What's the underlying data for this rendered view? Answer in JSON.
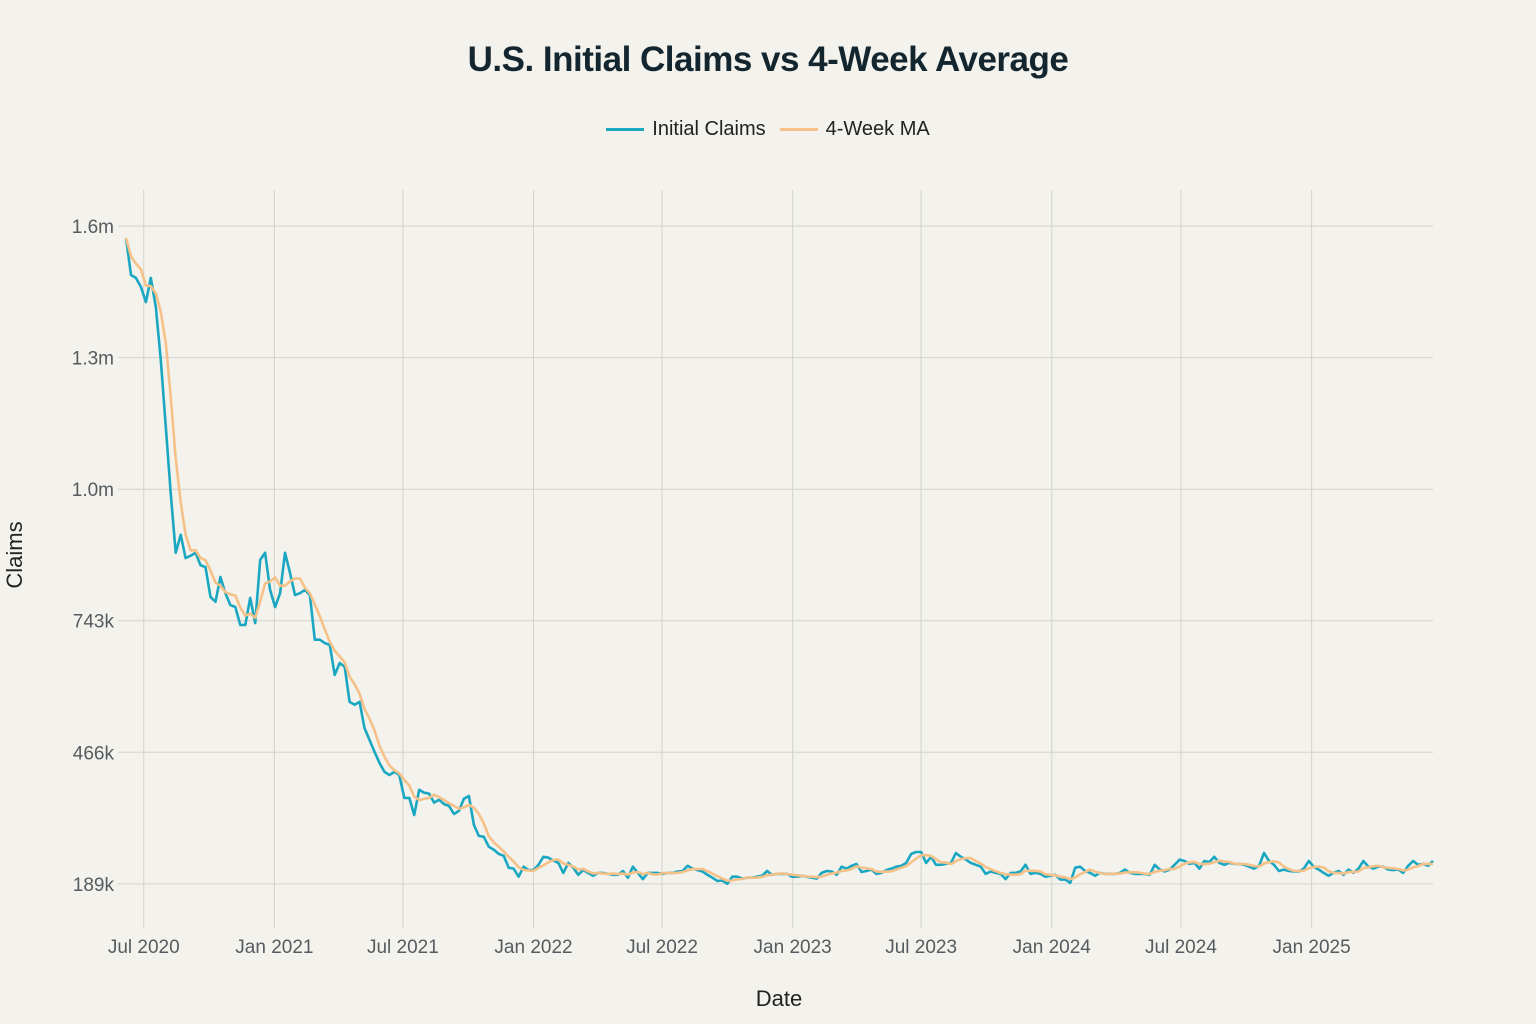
{
  "chart_data": {
    "type": "line",
    "title": "U.S. Initial Claims vs 4-Week Average",
    "xlabel": "Date",
    "ylabel": "Claims",
    "legend": {
      "placement": "top-center",
      "entries": [
        "Initial Claims",
        "4-Week MA"
      ]
    },
    "grid": true,
    "x": {
      "start_date": "2020-06-06",
      "frequency": "weekly"
    },
    "ylim": [
      96000,
      1650000
    ],
    "y_ticks": [
      {
        "value": 189000,
        "label": "189k"
      },
      {
        "value": 466000,
        "label": "466k"
      },
      {
        "value": 743000,
        "label": "743k"
      },
      {
        "value": 1020000,
        "label": "1.0m"
      },
      {
        "value": 1297000,
        "label": "1.3m"
      },
      {
        "value": 1574000,
        "label": "1.6m"
      }
    ],
    "x_ticks": [
      {
        "date": "2020-07-01",
        "label": "Jul 2020"
      },
      {
        "date": "2021-01-01",
        "label": "Jan 2021"
      },
      {
        "date": "2021-07-01",
        "label": "Jul 2021"
      },
      {
        "date": "2022-01-01",
        "label": "Jan 2022"
      },
      {
        "date": "2022-07-01",
        "label": "Jul 2022"
      },
      {
        "date": "2023-01-01",
        "label": "Jan 2023"
      },
      {
        "date": "2023-07-01",
        "label": "Jul 2023"
      },
      {
        "date": "2024-01-01",
        "label": "Jan 2024"
      },
      {
        "date": "2024-07-01",
        "label": "Jul 2024"
      },
      {
        "date": "2025-01-01",
        "label": "Jan 2025"
      }
    ],
    "value_unit": "thousands",
    "series": [
      {
        "name": "Initial Claims",
        "color": "#1aa7c2",
        "values": [
          1549,
          1471,
          1465,
          1446,
          1414,
          1465,
          1404,
          1292,
          1151,
          1012,
          886,
          924,
          875,
          880,
          886,
          860,
          856,
          793,
          783,
          835,
          801,
          776,
          772,
          734,
          734,
          791,
          738,
          871,
          886,
          808,
          772,
          801,
          886,
          844,
          797,
          801,
          808,
          797,
          703,
          703,
          696,
          692,
          629,
          654,
          646,
          572,
          566,
          572,
          517,
          492,
          467,
          444,
          425,
          418,
          425,
          418,
          370,
          370,
          334,
          387,
          381,
          379,
          360,
          366,
          357,
          353,
          336,
          343,
          368,
          374,
          313,
          290,
          288,
          267,
          261,
          252,
          248,
          223,
          221,
          204,
          225,
          218,
          218,
          229,
          246,
          244,
          238,
          233,
          212,
          233,
          223,
          208,
          218,
          212,
          206,
          212,
          212,
          210,
          208,
          208,
          216,
          202,
          225,
          212,
          199,
          212,
          212,
          212,
          210,
          212,
          212,
          215,
          216,
          227,
          221,
          218,
          215,
          208,
          202,
          195,
          196,
          189,
          204,
          204,
          200,
          202,
          202,
          204,
          206,
          216,
          208,
          210,
          210,
          210,
          204,
          204,
          206,
          204,
          202,
          200,
          212,
          216,
          215,
          208,
          225,
          221,
          227,
          231,
          214,
          216,
          219,
          210,
          212,
          218,
          221,
          225,
          227,
          233,
          252,
          256,
          256,
          233,
          246,
          229,
          229,
          231,
          233,
          254,
          246,
          240,
          233,
          229,
          225,
          210,
          215,
          212,
          210,
          199,
          212,
          212,
          215,
          229,
          210,
          212,
          210,
          204,
          206,
          208,
          198,
          198,
          191,
          223,
          225,
          216,
          212,
          206,
          212,
          210,
          210,
          210,
          212,
          219,
          212,
          210,
          210,
          210,
          208,
          229,
          219,
          215,
          219,
          229,
          240,
          237,
          231,
          233,
          221,
          237,
          235,
          246,
          233,
          229,
          233,
          231,
          231,
          229,
          225,
          221,
          227,
          254,
          237,
          229,
          216,
          219,
          216,
          215,
          215,
          221,
          237,
          225,
          219,
          212,
          206,
          212,
          216,
          208,
          219,
          212,
          221,
          237,
          225,
          221,
          225,
          225,
          219,
          218,
          219,
          212,
          227,
          237,
          229,
          231,
          227,
          237
        ]
      },
      {
        "name": "4-Week MA",
        "color": "#f5c189",
        "window": 4,
        "derived_from": "Initial Claims"
      }
    ]
  }
}
